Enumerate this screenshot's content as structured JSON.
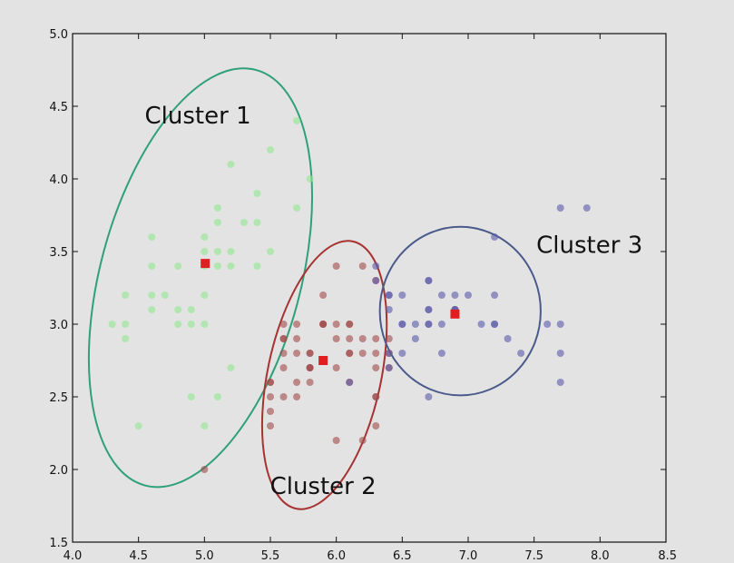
{
  "chart_data": {
    "type": "scatter",
    "title": "",
    "xlabel": "",
    "ylabel": "",
    "xlim": [
      4.0,
      8.5
    ],
    "ylim": [
      1.5,
      5.0
    ],
    "x_ticks": [
      "4.0",
      "4.5",
      "5.0",
      "5.5",
      "6.0",
      "6.5",
      "7.0",
      "7.5",
      "8.0",
      "8.5"
    ],
    "y_ticks": [
      "1.5",
      "2.0",
      "2.5",
      "3.0",
      "3.5",
      "4.0",
      "4.5",
      "5.0"
    ],
    "grid": false,
    "series": [
      {
        "color": "#90e890",
        "points": [
          [
            5.7,
            4.4
          ],
          [
            5.5,
            4.2
          ],
          [
            5.2,
            4.1
          ],
          [
            5.8,
            4.0
          ],
          [
            5.4,
            3.9
          ],
          [
            5.1,
            3.8
          ],
          [
            5.7,
            3.8
          ],
          [
            5.1,
            3.7
          ],
          [
            5.3,
            3.7
          ],
          [
            5.4,
            3.7
          ],
          [
            4.6,
            3.6
          ],
          [
            5.0,
            3.6
          ],
          [
            5.2,
            3.5
          ],
          [
            5.0,
            3.5
          ],
          [
            5.1,
            3.5
          ],
          [
            5.5,
            3.5
          ],
          [
            5.0,
            3.4
          ],
          [
            4.8,
            3.4
          ],
          [
            5.1,
            3.4
          ],
          [
            5.4,
            3.4
          ],
          [
            4.6,
            3.4
          ],
          [
            5.2,
            3.4
          ],
          [
            4.7,
            3.2
          ],
          [
            4.6,
            3.2
          ],
          [
            4.4,
            3.2
          ],
          [
            5.0,
            3.2
          ],
          [
            4.8,
            3.1
          ],
          [
            4.9,
            3.1
          ],
          [
            4.6,
            3.1
          ],
          [
            4.3,
            3.0
          ],
          [
            4.8,
            3.0
          ],
          [
            4.4,
            3.0
          ],
          [
            4.9,
            3.0
          ],
          [
            5.0,
            3.0
          ],
          [
            4.4,
            2.9
          ],
          [
            5.0,
            2.3
          ],
          [
            4.5,
            2.3
          ],
          [
            4.9,
            2.5
          ],
          [
            5.1,
            2.5
          ],
          [
            5.2,
            2.7
          ]
        ]
      },
      {
        "color": "#a24a4a",
        "points": [
          [
            5.8,
            2.7
          ],
          [
            6.0,
            2.2
          ],
          [
            5.6,
            2.9
          ],
          [
            5.7,
            2.8
          ],
          [
            5.8,
            2.6
          ],
          [
            6.1,
            2.8
          ],
          [
            6.3,
            2.5
          ],
          [
            5.9,
            3.0
          ],
          [
            6.0,
            3.4
          ],
          [
            6.1,
            3.0
          ],
          [
            5.5,
            2.4
          ],
          [
            5.6,
            2.5
          ],
          [
            5.8,
            2.7
          ],
          [
            6.2,
            2.2
          ],
          [
            5.6,
            3.0
          ],
          [
            5.9,
            3.2
          ],
          [
            6.1,
            2.9
          ],
          [
            5.7,
            2.6
          ],
          [
            5.5,
            2.6
          ],
          [
            6.3,
            2.3
          ],
          [
            5.6,
            2.7
          ],
          [
            5.7,
            3.0
          ],
          [
            5.7,
            2.9
          ],
          [
            6.2,
            2.9
          ],
          [
            5.8,
            2.7
          ],
          [
            6.0,
            2.9
          ],
          [
            5.5,
            2.5
          ],
          [
            5.7,
            2.5
          ],
          [
            5.8,
            2.8
          ],
          [
            6.3,
            2.8
          ],
          [
            6.0,
            3.0
          ],
          [
            6.2,
            2.8
          ],
          [
            6.3,
            3.3
          ],
          [
            6.3,
            2.7
          ],
          [
            6.4,
            2.8
          ],
          [
            6.4,
            2.7
          ],
          [
            5.9,
            3.0
          ],
          [
            6.1,
            3.0
          ],
          [
            6.0,
            2.7
          ],
          [
            6.2,
            3.4
          ],
          [
            6.3,
            2.9
          ],
          [
            5.6,
            2.8
          ],
          [
            5.8,
            2.8
          ],
          [
            5.5,
            2.3
          ],
          [
            5.5,
            2.6
          ],
          [
            5.0,
            2.0
          ],
          [
            6.4,
            2.9
          ],
          [
            6.1,
            2.8
          ],
          [
            6.3,
            2.5
          ],
          [
            5.9,
            3.0
          ],
          [
            5.6,
            2.9
          ],
          [
            6.1,
            2.6
          ]
        ]
      },
      {
        "color": "#5a5aaa",
        "points": [
          [
            7.0,
            3.2
          ],
          [
            6.4,
            3.2
          ],
          [
            6.9,
            3.1
          ],
          [
            6.5,
            2.8
          ],
          [
            6.7,
            3.1
          ],
          [
            6.6,
            3.0
          ],
          [
            6.7,
            3.0
          ],
          [
            7.2,
            3.6
          ],
          [
            6.5,
            3.2
          ],
          [
            6.4,
            2.7
          ],
          [
            6.8,
            3.0
          ],
          [
            6.4,
            3.1
          ],
          [
            7.7,
            3.8
          ],
          [
            7.7,
            2.6
          ],
          [
            6.9,
            3.2
          ],
          [
            7.7,
            2.8
          ],
          [
            6.7,
            3.3
          ],
          [
            7.2,
            3.2
          ],
          [
            7.4,
            2.8
          ],
          [
            7.9,
            3.8
          ],
          [
            6.4,
            2.8
          ],
          [
            6.1,
            2.6
          ],
          [
            7.7,
            3.0
          ],
          [
            6.9,
            3.1
          ],
          [
            6.7,
            3.1
          ],
          [
            6.8,
            3.2
          ],
          [
            6.7,
            3.3
          ],
          [
            6.7,
            3.0
          ],
          [
            6.5,
            3.0
          ],
          [
            6.9,
            3.1
          ],
          [
            7.1,
            3.0
          ],
          [
            7.3,
            2.9
          ],
          [
            7.2,
            3.0
          ],
          [
            7.6,
            3.0
          ],
          [
            6.3,
            3.4
          ],
          [
            6.4,
            3.2
          ],
          [
            6.8,
            2.8
          ],
          [
            6.7,
            2.5
          ],
          [
            6.6,
            2.9
          ],
          [
            7.2,
            3.0
          ],
          [
            6.5,
            3.0
          ],
          [
            6.3,
            3.3
          ]
        ]
      }
    ],
    "centroids": [
      {
        "x": 5.006,
        "y": 3.418,
        "color": "#e02020"
      },
      {
        "x": 5.9,
        "y": 2.75,
        "color": "#e02020"
      },
      {
        "x": 6.9,
        "y": 3.07,
        "color": "#e02020"
      }
    ],
    "ellipses": [
      {
        "cx": 4.97,
        "cy": 3.32,
        "rx": 0.76,
        "ry": 1.48,
        "angle_deg": 15,
        "color": "#2fa07a"
      },
      {
        "cx": 5.91,
        "cy": 2.65,
        "rx": 0.43,
        "ry": 0.94,
        "angle_deg": 12,
        "color": "#a83232"
      },
      {
        "cx": 6.94,
        "cy": 3.09,
        "rx": 0.61,
        "ry": 0.58,
        "angle_deg": 0,
        "color": "#4a5a8a"
      }
    ],
    "annotations": [
      {
        "text": "Cluster 1",
        "x": 4.95,
        "y": 4.38
      },
      {
        "text": "Cluster 2",
        "x": 5.9,
        "y": 1.83
      },
      {
        "text": "Cluster 3",
        "x": 7.92,
        "y": 3.49
      }
    ]
  }
}
